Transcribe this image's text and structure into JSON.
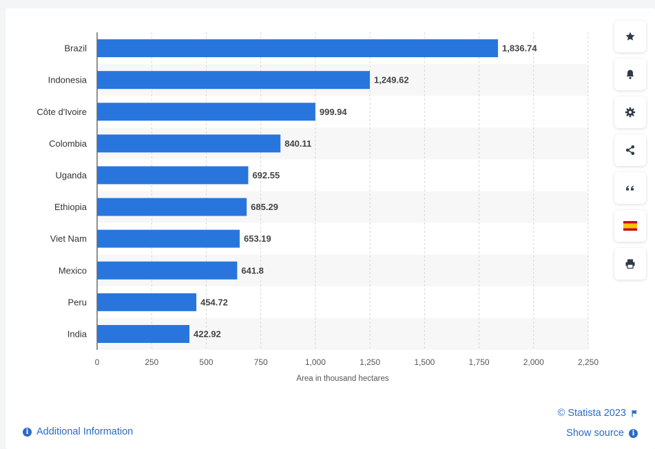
{
  "chart_data": {
    "type": "bar",
    "orientation": "horizontal",
    "categories": [
      "Brazil",
      "Indonesia",
      "Côte d'Ivoire",
      "Colombia",
      "Uganda",
      "Ethiopia",
      "Viet Nam",
      "Mexico",
      "Peru",
      "India"
    ],
    "values": [
      1836.74,
      1249.62,
      999.94,
      840.11,
      692.55,
      685.29,
      653.19,
      641.8,
      454.72,
      422.92
    ],
    "value_labels": [
      "1,836.74",
      "1,249.62",
      "999.94",
      "840.11",
      "692.55",
      "685.29",
      "653.19",
      "641.8",
      "454.72",
      "422.92"
    ],
    "xlabel": "Area in thousand hectares",
    "xlim": [
      0,
      2250
    ],
    "ticks": [
      0,
      250,
      500,
      750,
      1000,
      1250,
      1500,
      1750,
      2000,
      2250
    ],
    "tick_labels": [
      "0",
      "250",
      "500",
      "750",
      "1,000",
      "1,250",
      "1,500",
      "1,750",
      "2,000",
      "2,250"
    ],
    "bar_color": "#2876dd",
    "grid": true
  },
  "toolbar": {
    "icons": [
      "star-icon",
      "bell-icon",
      "gear-icon",
      "share-icon",
      "quote-icon",
      "spain-flag-icon",
      "print-icon"
    ]
  },
  "footer": {
    "additional_info": "Additional Information",
    "copyright": "© Statista 2023",
    "show_source": "Show source"
  }
}
